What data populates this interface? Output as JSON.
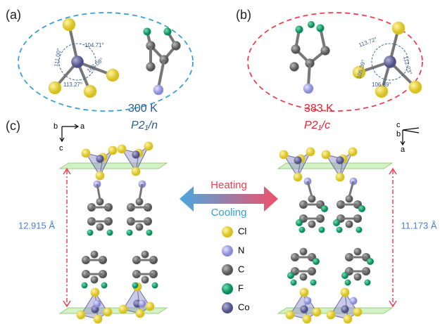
{
  "panels": {
    "a": {
      "label": "(a)",
      "angles": [
        "104.71°",
        "111.00°",
        "107.08°",
        "113.27°"
      ],
      "temperature": "300 K",
      "space_group": "P2₁/n"
    },
    "b": {
      "label": "(b)",
      "angles": [
        "113.72°",
        "112.23°",
        "105.39°",
        "106.89°"
      ],
      "temperature": "383 K",
      "space_group": "P2₁/c"
    },
    "c": {
      "label": "(c)",
      "left_axes": [
        "b",
        "a",
        "c"
      ],
      "right_axes": [
        "c",
        "b",
        "a"
      ],
      "left_distance": "12.915 Å",
      "right_distance": "11.173 Å",
      "heating": "Heating",
      "cooling": "Cooling"
    }
  },
  "legend": [
    "Cl",
    "N",
    "C",
    "F",
    "Co"
  ]
}
